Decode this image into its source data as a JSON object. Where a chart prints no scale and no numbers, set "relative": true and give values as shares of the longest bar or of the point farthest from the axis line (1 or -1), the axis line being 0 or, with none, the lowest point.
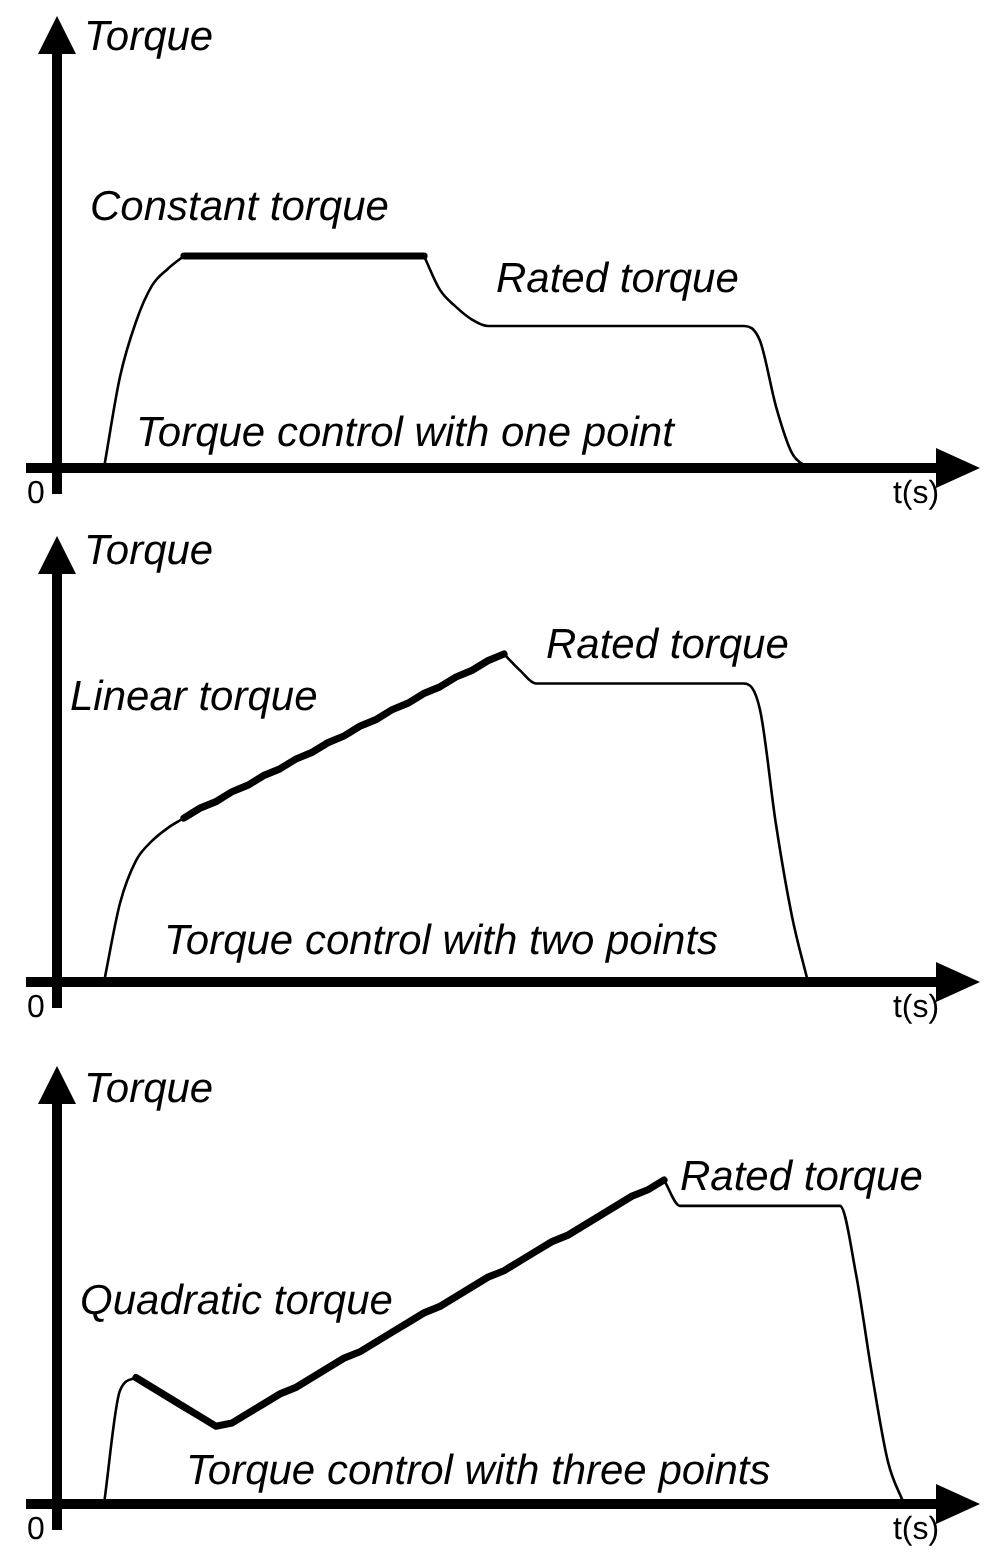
{
  "chart_data": [
    {
      "type": "line",
      "title": "Torque control with one point",
      "xlabel": "t(s)",
      "ylabel": "Torque",
      "annotations": [
        "0"
      ],
      "relative": true,
      "categories": [
        null,
        null,
        null,
        null,
        null,
        null,
        null,
        null,
        null,
        null,
        null,
        null,
        null,
        null,
        null,
        null,
        null,
        null,
        null,
        null,
        null,
        null,
        null,
        null,
        null,
        null,
        null,
        null,
        null,
        null,
        null,
        null,
        null,
        null,
        null,
        null,
        null,
        null,
        null,
        null,
        null,
        null,
        null,
        null,
        null,
        null,
        null,
        null,
        null,
        null,
        null,
        null,
        null,
        null,
        null,
        null,
        null
      ],
      "series": [
        {
          "color": "#000000",
          "values": [
            null,
            null,
            null,
            0,
            0.43,
            0.69,
            0.86,
            0.94,
            1,
            null,
            null,
            null,
            null,
            null,
            null,
            null,
            null,
            null,
            null,
            null,
            null,
            null,
            null,
            null,
            null,
            null,
            null,
            null,
            null,
            null,
            null,
            null,
            null,
            null,
            null,
            null,
            null,
            null,
            null,
            null,
            null,
            null,
            null,
            null,
            null,
            null,
            null,
            null,
            null,
            null,
            null,
            null,
            null,
            null,
            null,
            null,
            null
          ]
        },
        {
          "name": "Constant torque",
          "color": "#000000",
          "values": [
            null,
            null,
            null,
            null,
            null,
            null,
            null,
            null,
            1,
            1,
            1,
            1,
            1,
            1,
            1,
            1,
            1,
            1,
            1,
            1,
            1,
            1,
            1,
            1,
            null,
            null,
            null,
            null,
            null,
            null,
            null,
            null,
            null,
            null,
            null,
            null,
            null,
            null,
            null,
            null,
            null,
            null,
            null,
            null,
            null,
            null,
            null,
            null,
            null,
            null,
            null,
            null,
            null,
            null,
            null,
            null,
            null
          ]
        },
        {
          "name": "Rated torque",
          "color": "#000000",
          "values": [
            null,
            null,
            null,
            null,
            null,
            null,
            null,
            null,
            null,
            null,
            null,
            null,
            null,
            null,
            null,
            null,
            null,
            null,
            null,
            null,
            null,
            null,
            null,
            1,
            0.84,
            0.76,
            0.7,
            0.67,
            0.67,
            0.67,
            0.67,
            0.67,
            0.67,
            0.67,
            0.67,
            0.67,
            0.67,
            0.67,
            0.67,
            0.67,
            0.67,
            0.67,
            0.67,
            0.67,
            0.6,
            0.29,
            0.07,
            0,
            null,
            null,
            null,
            null,
            null,
            null,
            null,
            null,
            null
          ]
        }
      ]
    },
    {
      "type": "line",
      "title": "Torque control with two points",
      "xlabel": "t(s)",
      "ylabel": "Torque",
      "annotations": [
        "0"
      ],
      "relative": true,
      "categories": [
        null,
        null,
        null,
        null,
        null,
        null,
        null,
        null,
        null,
        null,
        null,
        null,
        null,
        null,
        null,
        null,
        null,
        null,
        null,
        null,
        null,
        null,
        null,
        null,
        null,
        null,
        null,
        null,
        null,
        null,
        null,
        null,
        null,
        null,
        null,
        null,
        null,
        null,
        null,
        null,
        null,
        null,
        null,
        null,
        null,
        null,
        null,
        null,
        null,
        null,
        null,
        null,
        null,
        null,
        null,
        null,
        null
      ],
      "series": [
        {
          "color": "#000000",
          "values": [
            null,
            null,
            null,
            0,
            0.24,
            0.37,
            0.43,
            0.47,
            0.5,
            null,
            null,
            null,
            null,
            null,
            null,
            null,
            null,
            null,
            null,
            null,
            null,
            null,
            null,
            null,
            null,
            null,
            null,
            null,
            null,
            null,
            null,
            null,
            null,
            null,
            null,
            null,
            null,
            null,
            null,
            null,
            null,
            null,
            null,
            null,
            null,
            null,
            null,
            null,
            null,
            null,
            null,
            null,
            null,
            null,
            null,
            null,
            null
          ]
        },
        {
          "name": "Linear torque",
          "color": "#000000",
          "values": [
            null,
            null,
            null,
            null,
            null,
            null,
            null,
            null,
            0.5,
            0.53,
            0.55,
            0.58,
            0.6,
            0.63,
            0.65,
            0.68,
            0.7,
            0.73,
            0.75,
            0.78,
            0.8,
            0.83,
            0.85,
            0.88,
            0.9,
            0.93,
            0.95,
            0.98,
            1,
            null,
            null,
            null,
            null,
            null,
            null,
            null,
            null,
            null,
            null,
            null,
            null,
            null,
            null,
            null,
            null,
            null,
            null,
            null,
            null,
            null,
            null,
            null,
            null,
            null,
            null,
            null,
            null
          ]
        },
        {
          "name": "Rated torque",
          "color": "#000000",
          "values": [
            null,
            null,
            null,
            null,
            null,
            null,
            null,
            null,
            null,
            null,
            null,
            null,
            null,
            null,
            null,
            null,
            null,
            null,
            null,
            null,
            null,
            null,
            null,
            null,
            null,
            null,
            null,
            null,
            1,
            0.95,
            0.91,
            0.91,
            0.91,
            0.91,
            0.91,
            0.91,
            0.91,
            0.91,
            0.91,
            0.91,
            0.91,
            0.91,
            0.91,
            0.91,
            0.83,
            0.48,
            0.2,
            0,
            null,
            null,
            null,
            null,
            null,
            null,
            null,
            null,
            null
          ]
        }
      ]
    },
    {
      "type": "line",
      "title": "Torque control with three points",
      "xlabel": "t(s)",
      "ylabel": "Torque",
      "annotations": [
        "0"
      ],
      "relative": true,
      "categories": [
        null,
        null,
        null,
        null,
        null,
        null,
        null,
        null,
        null,
        null,
        null,
        null,
        null,
        null,
        null,
        null,
        null,
        null,
        null,
        null,
        null,
        null,
        null,
        null,
        null,
        null,
        null,
        null,
        null,
        null,
        null,
        null,
        null,
        null,
        null,
        null,
        null,
        null,
        null,
        null,
        null,
        null,
        null,
        null,
        null,
        null,
        null,
        null,
        null,
        null,
        null,
        null,
        null,
        null,
        null,
        null,
        null
      ],
      "series": [
        {
          "color": "#000000",
          "values": [
            null,
            null,
            null,
            0,
            0.35,
            0.39,
            null,
            null,
            null,
            null,
            null,
            null,
            null,
            null,
            null,
            null,
            null,
            null,
            null,
            null,
            null,
            null,
            null,
            null,
            null,
            null,
            null,
            null,
            null,
            null,
            null,
            null,
            null,
            null,
            null,
            null,
            null,
            null,
            null,
            null,
            null,
            null,
            null,
            null,
            null,
            null,
            null,
            null,
            null,
            null,
            null,
            null,
            null,
            null,
            null,
            null,
            null
          ]
        },
        {
          "name": "Quadratic torque",
          "color": "#000000",
          "values": [
            null,
            null,
            null,
            null,
            null,
            0.39,
            0.36,
            0.33,
            0.3,
            0.27,
            0.24,
            0.25,
            0.28,
            0.31,
            0.34,
            0.36,
            0.39,
            0.42,
            0.45,
            0.47,
            0.5,
            0.53,
            0.56,
            0.59,
            0.61,
            0.64,
            0.67,
            0.7,
            0.72,
            0.75,
            0.78,
            0.81,
            0.83,
            0.86,
            0.89,
            0.92,
            0.95,
            0.97,
            1,
            null,
            null,
            null,
            null,
            null,
            null,
            null,
            null,
            null,
            null,
            null,
            null,
            null,
            null,
            null,
            null,
            null,
            null
          ]
        },
        {
          "name": "Rated torque",
          "color": "#000000",
          "values": [
            null,
            null,
            null,
            null,
            null,
            null,
            null,
            null,
            null,
            null,
            null,
            null,
            null,
            null,
            null,
            null,
            null,
            null,
            null,
            null,
            null,
            null,
            null,
            null,
            null,
            null,
            null,
            null,
            null,
            null,
            null,
            null,
            null,
            null,
            null,
            null,
            null,
            null,
            1,
            0.92,
            0.92,
            0.92,
            0.92,
            0.92,
            0.92,
            0.92,
            0.92,
            0.92,
            0.92,
            0.92,
            0.71,
            0.4,
            0.13,
            0,
            null,
            null,
            null
          ]
        }
      ]
    }
  ]
}
